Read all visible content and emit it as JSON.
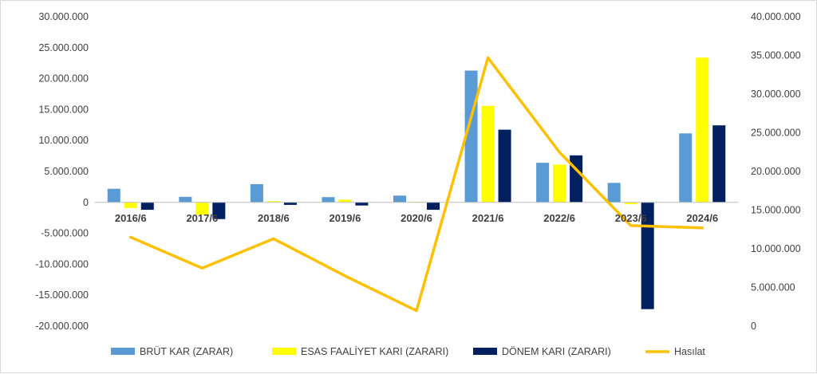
{
  "chart_data": {
    "type": "bar",
    "categories": [
      "2016/6",
      "2017/6",
      "2018/6",
      "2019/6",
      "2020/6",
      "2021/6",
      "2022/6",
      "2023/6",
      "2024/6"
    ],
    "series": [
      {
        "name": "BRÜT KAR (ZARAR)",
        "axis": "left",
        "kind": "bar",
        "color": "#5b9bd5",
        "values": [
          2200000,
          900000,
          2950000,
          850000,
          1100000,
          21300000,
          6400000,
          3150000,
          11150000
        ]
      },
      {
        "name": "ESAS FAALİYET KARI (ZARARI)",
        "axis": "left",
        "kind": "bar",
        "color": "#ffff00",
        "values": [
          -900000,
          -2000000,
          200000,
          450000,
          100000,
          15600000,
          6100000,
          -300000,
          23400000
        ]
      },
      {
        "name": "DÖNEM KARI (ZARARI)",
        "axis": "left",
        "kind": "bar",
        "color": "#002060",
        "values": [
          -1200000,
          -2700000,
          -400000,
          -500000,
          -1200000,
          11750000,
          7600000,
          -17250000,
          12450000
        ]
      },
      {
        "name": "Hasılat",
        "axis": "right",
        "kind": "line",
        "color": "#ffc000",
        "values": [
          11500000,
          7500000,
          11300000,
          6500000,
          2000000,
          34700000,
          22500000,
          13000000,
          12700000
        ]
      }
    ],
    "left_axis": {
      "ylim": [
        -20000000,
        30000000
      ],
      "ticks": [
        30000000,
        25000000,
        20000000,
        15000000,
        10000000,
        5000000,
        0,
        -5000000,
        -10000000,
        -15000000,
        -20000000
      ],
      "tick_labels": [
        "30.000.000",
        "25.000.000",
        "20.000.000",
        "15.000.000",
        "10.000.000",
        "5.000.000",
        "0",
        "-5.000.000",
        "-10.000.000",
        "-15.000.000",
        "-20.000.000"
      ]
    },
    "right_axis": {
      "ylim": [
        0,
        40000000
      ],
      "ticks": [
        40000000,
        35000000,
        30000000,
        25000000,
        20000000,
        15000000,
        10000000,
        5000000,
        0
      ],
      "tick_labels": [
        "40.000.000",
        "35.000.000",
        "30.000.000",
        "25.000.000",
        "20.000.000",
        "15.000.000",
        "10.000.000",
        "5.000.000",
        "0"
      ]
    },
    "title": "",
    "xlabel": "",
    "ylabel": "",
    "grid": false,
    "legend_position": "bottom"
  }
}
